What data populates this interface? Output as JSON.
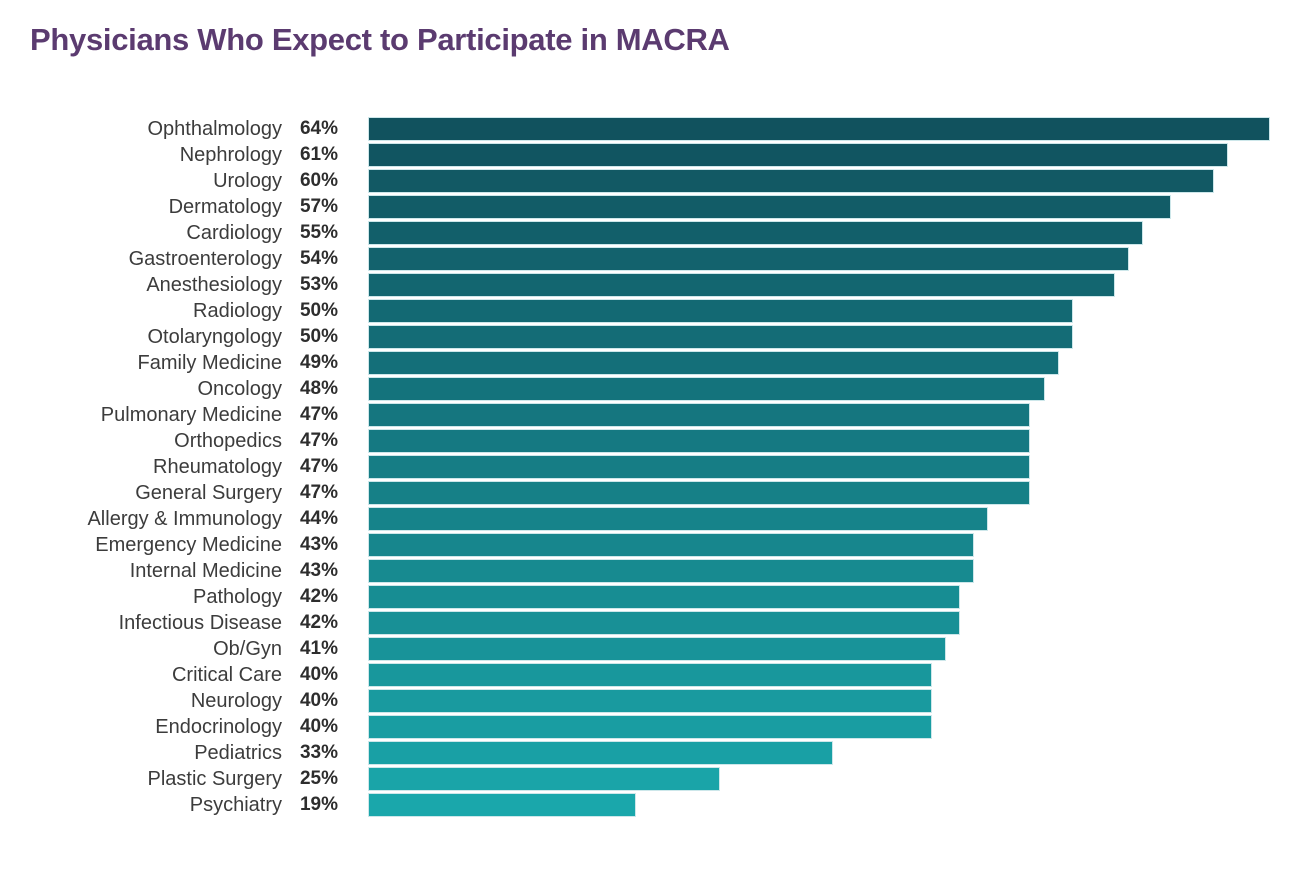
{
  "page": {
    "title": "Physicians Who Expect to Participate in MACRA"
  },
  "colors": {
    "title_text": "#5B3B70",
    "category_label_text": "#3C3C3C",
    "value_label_text": "#2D2D2D",
    "bar_gradient_top": "#11525E",
    "bar_gradient_bottom": "#1AA7AB",
    "bar_border": "#CDE7EA",
    "background": "#FFFFFF"
  },
  "chart_data": {
    "type": "bar",
    "orientation": "horizontal",
    "title": "Physicians Who Expect to Participate in MACRA",
    "xlabel": "",
    "ylabel": "",
    "xlim": [
      0,
      64
    ],
    "grid": false,
    "legend": false,
    "sorted": "descending",
    "value_label_position": "left-of-bar",
    "value_suffix": "%",
    "categories": [
      "Ophthalmology",
      "Nephrology",
      "Urology",
      "Dermatology",
      "Cardiology",
      "Gastroenterology",
      "Anesthesiology",
      "Radiology",
      "Otolaryngology",
      "Family Medicine",
      "Oncology",
      "Pulmonary Medicine",
      "Orthopedics",
      "Rheumatology",
      "General Surgery",
      "Allergy & Immunology",
      "Emergency Medicine",
      "Internal Medicine",
      "Pathology",
      "Infectious Disease",
      "Ob/Gyn",
      "Critical Care",
      "Neurology",
      "Endocrinology",
      "Pediatrics",
      "Plastic Surgery",
      "Psychiatry"
    ],
    "values": [
      64,
      61,
      60,
      57,
      55,
      54,
      53,
      50,
      50,
      49,
      48,
      47,
      47,
      47,
      47,
      44,
      43,
      43,
      42,
      42,
      41,
      40,
      40,
      40,
      33,
      25,
      19
    ]
  }
}
